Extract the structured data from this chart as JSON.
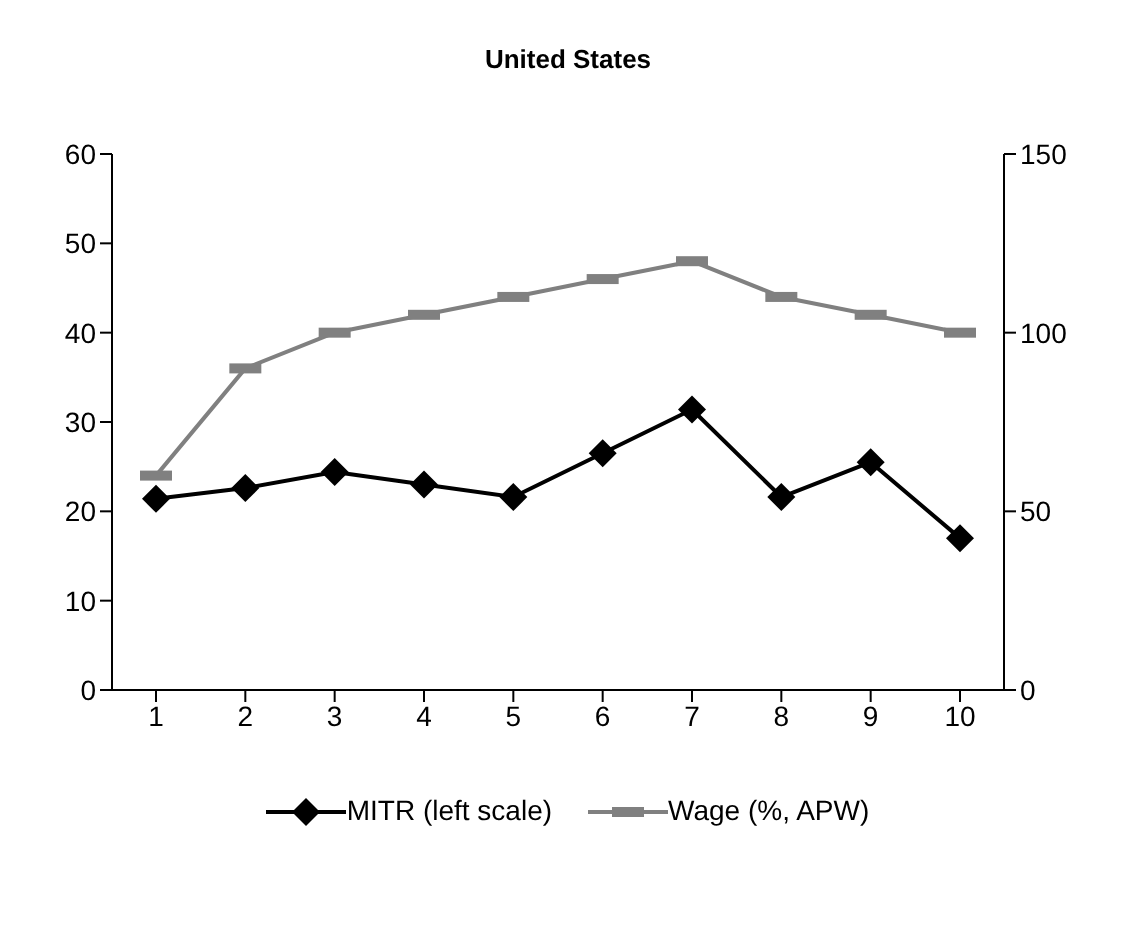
{
  "chart_data": {
    "type": "line",
    "title": "United States",
    "categories": [
      "1",
      "2",
      "3",
      "4",
      "5",
      "6",
      "7",
      "8",
      "9",
      "10"
    ],
    "series": [
      {
        "name": "MITR (left scale)",
        "color": "#000000",
        "marker": "diamond",
        "values": [
          21.4,
          22.6,
          24.4,
          23.0,
          21.6,
          26.5,
          31.4,
          21.6,
          25.5,
          17.0
        ]
      },
      {
        "name": "Wage (%, APW)",
        "color": "#808080",
        "marker": "square",
        "axis": "y2",
        "values": [
          60,
          90,
          100,
          105,
          110,
          115,
          120,
          110,
          105,
          100
        ]
      }
    ],
    "ylim": [
      0,
      60
    ],
    "yticks": [
      0,
      10,
      20,
      30,
      40,
      50,
      60
    ],
    "y2lim": [
      0,
      150
    ],
    "y2ticks": [
      0,
      50,
      100,
      150
    ],
    "grid": false,
    "legend": "bottom"
  }
}
